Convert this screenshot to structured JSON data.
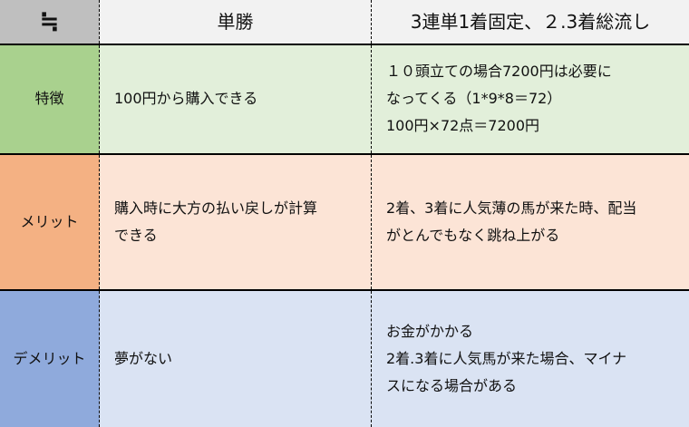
{
  "header": {
    "corner": "≒",
    "col1": "単勝",
    "col2": "3連単1着固定、２.3着総流し"
  },
  "rows": [
    {
      "label": "特徴",
      "col1": [
        "100円から購入できる"
      ],
      "col2": [
        "１０頭立ての場合7200円は必要に",
        "なってくる（1*9*8＝72）",
        "100円×72点＝7200円"
      ]
    },
    {
      "label": "メリット",
      "col1": [
        "購入時に大方の払い戻しが計算",
        "できる"
      ],
      "col2": [
        "2着、3着に人気薄の馬が来た時、配当",
        "がとんでもなく跳ね上がる"
      ]
    },
    {
      "label": "デメリット",
      "col1": [
        "夢がない"
      ],
      "col2": [
        "お金がかかる",
        "2着.3着に人気馬が来た場合、マイナ",
        "スになる場合がある"
      ]
    }
  ],
  "colors": {
    "header_corner": "#bfbfbf",
    "header": "#f2f2f2",
    "row1_label": "#a9d18e",
    "row1": "#e2efda",
    "row2_label": "#f4b183",
    "row2": "#fce4d6",
    "row3_label": "#8faadc",
    "row3": "#dae3f3"
  }
}
